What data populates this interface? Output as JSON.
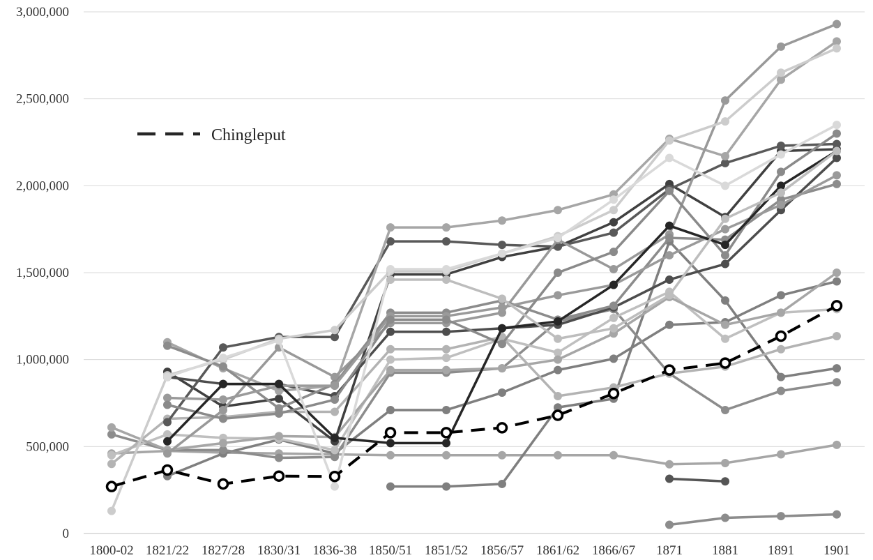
{
  "chart_data": {
    "type": "line",
    "title": "",
    "xlabel": "",
    "ylabel": "",
    "categories": [
      "1800-02",
      "1821/22",
      "1827/28",
      "1830/31",
      "1836-38",
      "1850/51",
      "1851/52",
      "1856/57",
      "1861/62",
      "1866/67",
      "1871",
      "1881",
      "1891",
      "1901"
    ],
    "ylim": [
      0,
      3000000
    ],
    "yticks": [
      0,
      500000,
      1000000,
      1500000,
      2000000,
      2500000,
      3000000
    ],
    "ytick_labels": [
      "0",
      "500,000",
      "1,000,000",
      "1,500,000",
      "2,000,000",
      "2,500,000",
      "3,000,000"
    ],
    "grid": "horizontal",
    "legend": {
      "placement": "upper-left",
      "entries": [
        "Chingleput"
      ]
    },
    "highlight_series": "Chingleput",
    "series": [
      {
        "name": "Chingleput",
        "color": "#000000",
        "dashed": true,
        "values": [
          270000,
          365000,
          285000,
          330000,
          328000,
          580000,
          580000,
          608000,
          680000,
          805000,
          940000,
          980000,
          1135000,
          1310000
        ]
      },
      {
        "color": "#a6a6a6",
        "values": [
          460000,
          475000,
          465000,
          460000,
          455000,
          450000,
          450000,
          450000,
          450000,
          450000,
          398000,
          405000,
          455000,
          510000
        ]
      },
      {
        "color": "#8c8c8c",
        "values": [
          null,
          null,
          null,
          null,
          null,
          null,
          null,
          null,
          null,
          null,
          50000,
          90000,
          100000,
          110000
        ]
      },
      {
        "color": "#7f7f7f",
        "values": [
          null,
          null,
          null,
          null,
          null,
          270000,
          270000,
          285000,
          725000,
          775000,
          1680000,
          1340000,
          900000,
          950000
        ]
      },
      {
        "color": "#555555",
        "values": [
          null,
          null,
          null,
          null,
          null,
          null,
          null,
          null,
          null,
          null,
          315000,
          300000,
          null,
          null
        ]
      },
      {
        "color": "#7f7f7f",
        "values": [
          null,
          330000,
          460000,
          540000,
          460000,
          710000,
          710000,
          810000,
          940000,
          1005000,
          1200000,
          1215000,
          1370000,
          1450000
        ]
      },
      {
        "color": "#8c8c8c",
        "values": [
          570000,
          480000,
          480000,
          435000,
          440000,
          925000,
          925000,
          950000,
          1220000,
          1290000,
          920000,
          710000,
          820000,
          870000
        ]
      },
      {
        "color": "#bfbfbf",
        "values": [
          450000,
          570000,
          550000,
          545000,
          480000,
          1000000,
          1010000,
          1120000,
          1040000,
          1240000,
          1390000,
          1120000,
          1270000,
          1290000
        ]
      },
      {
        "color": "#a6a6a6",
        "values": [
          610000,
          480000,
          520000,
          560000,
          555000,
          940000,
          940000,
          950000,
          1000000,
          1150000,
          1360000,
          1200000,
          1270000,
          1500000
        ]
      },
      {
        "color": "#b3b3b3",
        "values": [
          400000,
          660000,
          670000,
          700000,
          700000,
          1060000,
          1060000,
          1130000,
          790000,
          840000,
          920000,
          960000,
          1060000,
          1135000
        ]
      },
      {
        "color": "#404040",
        "values": [
          null,
          930000,
          730000,
          775000,
          530000,
          1490000,
          1490000,
          1590000,
          1650000,
          1790000,
          2010000,
          1820000,
          2200000,
          2210000
        ]
      },
      {
        "color": "#4d4d4d",
        "values": [
          null,
          900000,
          860000,
          860000,
          790000,
          1160000,
          1160000,
          1180000,
          1200000,
          1300000,
          1460000,
          1550000,
          1860000,
          2160000
        ]
      },
      {
        "color": "#595959",
        "values": [
          null,
          640000,
          1070000,
          1130000,
          1130000,
          1680000,
          1680000,
          1660000,
          1650000,
          1730000,
          1980000,
          2130000,
          2230000,
          2240000
        ]
      },
      {
        "color": "#a6a6a6",
        "values": [
          null,
          1100000,
          950000,
          820000,
          850000,
          1760000,
          1760000,
          1800000,
          1860000,
          1950000,
          2270000,
          2170000,
          2610000,
          2830000
        ]
      },
      {
        "color": "#999999",
        "values": [
          null,
          460000,
          710000,
          1070000,
          900000,
          1210000,
          1210000,
          1270000,
          1690000,
          1520000,
          1720000,
          2490000,
          2800000,
          2930000
        ]
      },
      {
        "color": "#cccccc",
        "values": [
          130000,
          910000,
          1000000,
          1120000,
          1170000,
          1510000,
          1510000,
          1610000,
          1710000,
          1860000,
          2260000,
          2370000,
          2650000,
          2790000
        ]
      },
      {
        "color": "#8c8c8c",
        "values": [
          null,
          1080000,
          960000,
          720000,
          860000,
          1270000,
          1270000,
          1340000,
          1230000,
          1310000,
          1700000,
          1690000,
          1920000,
          2010000
        ]
      },
      {
        "color": "#9a9a9a",
        "values": [
          null,
          780000,
          770000,
          850000,
          850000,
          1250000,
          1250000,
          1300000,
          1370000,
          1430000,
          1600000,
          1750000,
          1890000,
          2060000
        ]
      },
      {
        "color": "#8a8a8a",
        "values": [
          null,
          740000,
          660000,
          690000,
          770000,
          1230000,
          1230000,
          1090000,
          1500000,
          1620000,
          1970000,
          1600000,
          2080000,
          2300000
        ]
      },
      {
        "color": "#262626",
        "values": [
          null,
          530000,
          860000,
          860000,
          550000,
          520000,
          520000,
          1180000,
          1220000,
          1430000,
          1770000,
          1660000,
          2000000,
          2200000
        ]
      },
      {
        "color": "#d9d9d9",
        "values": [
          null,
          900000,
          1010000,
          1110000,
          270000,
          1520000,
          1520000,
          1610000,
          1700000,
          1920000,
          2160000,
          2000000,
          2180000,
          2350000
        ]
      },
      {
        "color": "#bdbdbd",
        "values": [
          null,
          null,
          null,
          null,
          null,
          1460000,
          1460000,
          1350000,
          1120000,
          1180000,
          1370000,
          1810000,
          1960000,
          2200000
        ]
      }
    ]
  }
}
